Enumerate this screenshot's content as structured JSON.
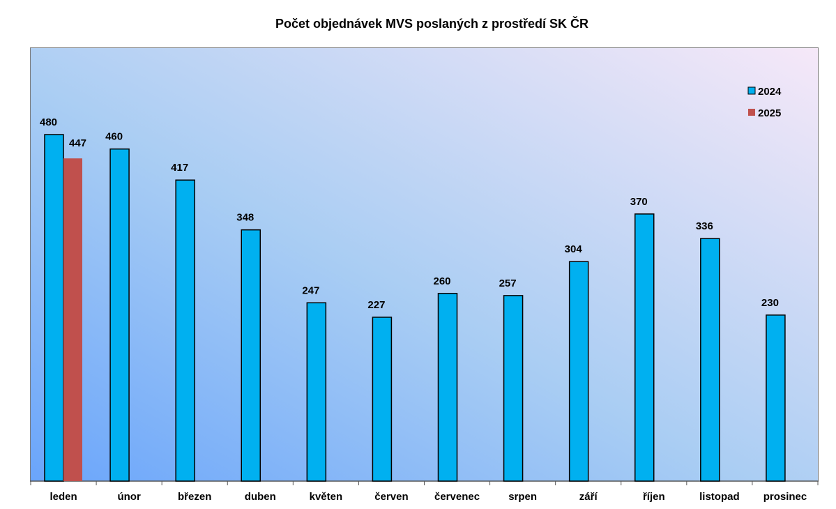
{
  "chart_data": {
    "type": "bar",
    "title": "Počet objednávek MVS poslaných z prostředí SK ČR",
    "categories": [
      "leden",
      "únor",
      "březen",
      "duben",
      "květen",
      "červen",
      "červenec",
      "srpen",
      "září",
      "říjen",
      "listopad",
      "prosinec"
    ],
    "series": [
      {
        "name": "2024",
        "color": "#00b0f0",
        "values": [
          480,
          460,
          417,
          348,
          247,
          227,
          260,
          257,
          304,
          370,
          336,
          230
        ]
      },
      {
        "name": "2025",
        "color": "#c0504d",
        "values": [
          447,
          null,
          null,
          null,
          null,
          null,
          null,
          null,
          null,
          null,
          null,
          null
        ]
      }
    ],
    "ylim": [
      0,
      600
    ],
    "grid": false,
    "legend": "top-right",
    "data_labels": true
  }
}
